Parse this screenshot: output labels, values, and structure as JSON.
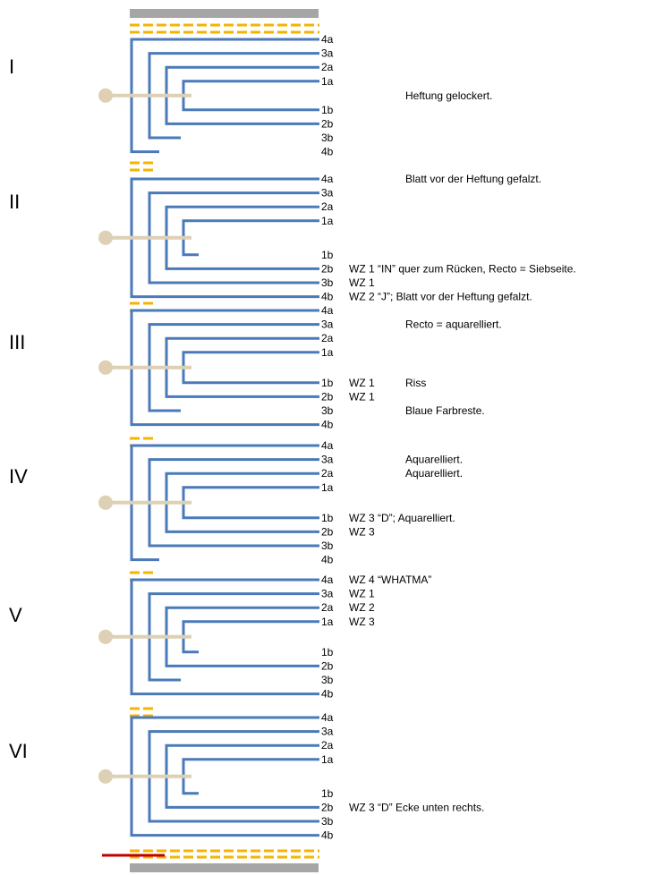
{
  "colors": {
    "leaf": "#4a7ab8",
    "thread": "#ddd0b4",
    "guard": "#f4b400",
    "board": "#a6a6a6",
    "marker": "#c00000"
  },
  "gatherings": [
    {
      "numeral": "I",
      "leaves": [
        {
          "label": "4a",
          "note": ""
        },
        {
          "label": "3a",
          "note": ""
        },
        {
          "label": "2a",
          "note": ""
        },
        {
          "label": "1a",
          "note": ""
        },
        {
          "label": "1b",
          "note": ""
        },
        {
          "label": "2b",
          "note": ""
        },
        {
          "label": "3b",
          "note": ""
        },
        {
          "label": "4b",
          "note": ""
        }
      ],
      "free_notes": [
        {
          "text": "Heftung gelockert.",
          "row": 3.5
        }
      ]
    },
    {
      "numeral": "II",
      "leaves": [
        {
          "label": "4a",
          "note": ""
        },
        {
          "label": "3a",
          "note": ""
        },
        {
          "label": "2a",
          "note": ""
        },
        {
          "label": "1a",
          "note": ""
        },
        {
          "label": "1b",
          "note": ""
        },
        {
          "label": "2b",
          "note": "WZ 1 “IN” quer zum Rücken, Recto = Siebseite."
        },
        {
          "label": "3b",
          "note": "WZ 1"
        },
        {
          "label": "4b",
          "note": "WZ 2 “J”; Blatt vor der Heftung gefalzt."
        }
      ],
      "free_notes": [
        {
          "text": "Blatt vor der Heftung gefalzt.",
          "row": 0
        }
      ]
    },
    {
      "numeral": "III",
      "leaves": [
        {
          "label": "4a",
          "note": ""
        },
        {
          "label": "3a",
          "note": ""
        },
        {
          "label": "2a",
          "note": ""
        },
        {
          "label": "1a",
          "note": ""
        },
        {
          "label": "1b",
          "note": "WZ 1"
        },
        {
          "label": "2b",
          "note": "WZ 1"
        },
        {
          "label": "3b",
          "note": ""
        },
        {
          "label": "4b",
          "note": ""
        }
      ],
      "free_notes": [
        {
          "text": "Recto = aquarelliert.",
          "row": 1
        },
        {
          "text": "Riss",
          "row": 4
        },
        {
          "text": "Blaue Farbreste.",
          "row": 6
        }
      ]
    },
    {
      "numeral": "IV",
      "leaves": [
        {
          "label": "4a",
          "note": ""
        },
        {
          "label": "3a",
          "note": ""
        },
        {
          "label": "2a",
          "note": ""
        },
        {
          "label": "1a",
          "note": ""
        },
        {
          "label": "1b",
          "note": "WZ 3 “D”; Aquarelliert."
        },
        {
          "label": "2b",
          "note": "WZ 3"
        },
        {
          "label": "3b",
          "note": ""
        },
        {
          "label": "4b",
          "note": ""
        }
      ],
      "free_notes": [
        {
          "text": "Aquarelliert.",
          "row": 1
        },
        {
          "text": "Aquarelliert.",
          "row": 2
        }
      ]
    },
    {
      "numeral": "V",
      "leaves": [
        {
          "label": "4a",
          "note": "WZ 4 “WHATMA”"
        },
        {
          "label": "3a",
          "note": "WZ 1"
        },
        {
          "label": "2a",
          "note": "WZ 2"
        },
        {
          "label": "1a",
          "note": "WZ 3"
        },
        {
          "label": "1b",
          "note": ""
        },
        {
          "label": "2b",
          "note": ""
        },
        {
          "label": "3b",
          "note": ""
        },
        {
          "label": "4b",
          "note": ""
        }
      ],
      "free_notes": []
    },
    {
      "numeral": "VI",
      "leaves": [
        {
          "label": "4a",
          "note": ""
        },
        {
          "label": "3a",
          "note": ""
        },
        {
          "label": "2a",
          "note": ""
        },
        {
          "label": "1a",
          "note": ""
        },
        {
          "label": "1b",
          "note": ""
        },
        {
          "label": "2b",
          "note": "WZ 3 “D” Ecke unten rechts."
        },
        {
          "label": "3b",
          "note": ""
        },
        {
          "label": "4b",
          "note": ""
        }
      ],
      "free_notes": []
    }
  ]
}
